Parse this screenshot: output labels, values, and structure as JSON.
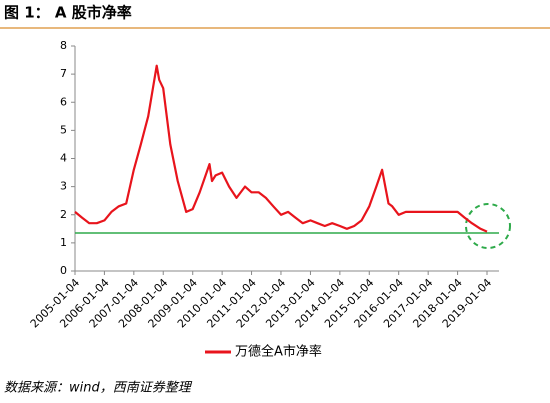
{
  "chart_data": {
    "type": "line",
    "title": "图 1： A 股市净率",
    "source": "数据来源：wind，西南证券整理",
    "legend": "bottom",
    "x": [
      "2005-01-04",
      "2005-04-01",
      "2005-07-01",
      "2005-10-01",
      "2006-01-04",
      "2006-04-01",
      "2006-07-01",
      "2006-10-01",
      "2007-01-04",
      "2007-04-01",
      "2007-07-01",
      "2007-10-15",
      "2007-11-15",
      "2008-01-04",
      "2008-04-01",
      "2008-07-01",
      "2008-10-15",
      "2009-01-04",
      "2009-04-01",
      "2009-07-31",
      "2009-08-31",
      "2009-10-15",
      "2010-01-04",
      "2010-04-01",
      "2010-07-01",
      "2010-10-15",
      "2011-01-04",
      "2011-04-01",
      "2011-07-01",
      "2011-10-01",
      "2012-01-04",
      "2012-04-01",
      "2012-07-01",
      "2012-10-01",
      "2013-01-04",
      "2013-04-01",
      "2013-07-01",
      "2013-10-01",
      "2014-01-04",
      "2014-04-01",
      "2014-07-01",
      "2014-10-01",
      "2015-01-04",
      "2015-04-01",
      "2015-06-12",
      "2015-08-31",
      "2015-10-15",
      "2016-01-04",
      "2016-04-01",
      "2016-07-01",
      "2016-10-01",
      "2017-01-04",
      "2017-04-01",
      "2017-07-01",
      "2017-10-01",
      "2018-01-04",
      "2018-04-01",
      "2018-07-01",
      "2018-10-15",
      "2019-01-04"
    ],
    "series": [
      {
        "name": "万德全A市净率",
        "color": "#e8141c",
        "values": [
          2.1,
          1.9,
          1.7,
          1.7,
          1.8,
          2.1,
          2.3,
          2.4,
          3.6,
          4.5,
          5.5,
          7.3,
          6.8,
          6.5,
          4.5,
          3.2,
          2.1,
          2.2,
          2.8,
          3.8,
          3.2,
          3.4,
          3.5,
          3.0,
          2.6,
          3.0,
          2.8,
          2.8,
          2.6,
          2.3,
          2.0,
          2.1,
          1.9,
          1.7,
          1.8,
          1.7,
          1.6,
          1.7,
          1.6,
          1.5,
          1.6,
          1.8,
          2.3,
          3.0,
          3.6,
          2.4,
          2.3,
          2.0,
          2.1,
          2.1,
          2.1,
          2.1,
          2.1,
          2.1,
          2.1,
          2.1,
          1.9,
          1.7,
          1.5,
          1.4
        ]
      }
    ],
    "reference_line": {
      "value": 1.35,
      "color": "#2eaa4a"
    },
    "ylim": [
      0,
      8
    ],
    "yticks": [
      0,
      1,
      2,
      3,
      4,
      5,
      6,
      7,
      8
    ],
    "xlim": [
      "2005-01-04",
      "2019-01-04"
    ],
    "xticks": [
      "2005-01-04",
      "2006-01-04",
      "2007-01-04",
      "2008-01-04",
      "2009-01-04",
      "2010-01-04",
      "2011-01-04",
      "2012-01-04",
      "2013-01-04",
      "2014-01-04",
      "2015-01-04",
      "2016-01-04",
      "2017-01-04",
      "2018-01-04",
      "2019-01-04"
    ]
  }
}
